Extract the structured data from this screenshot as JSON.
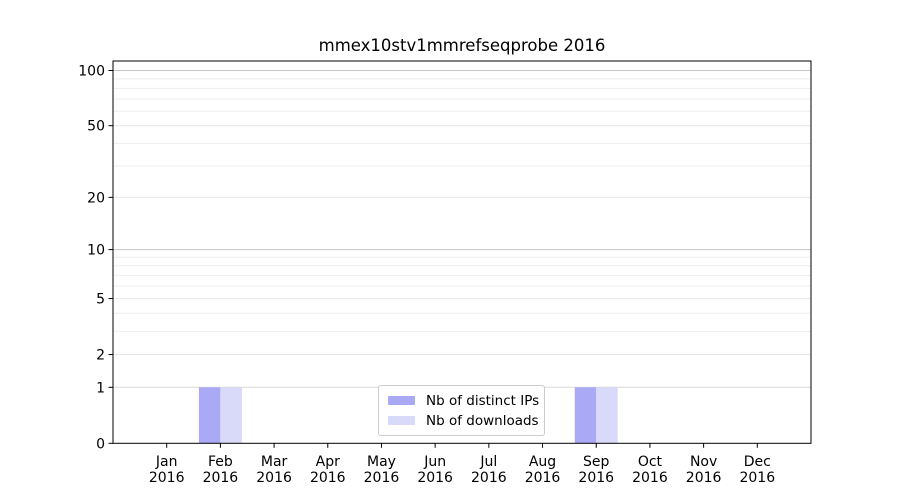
{
  "chart_data": {
    "type": "bar",
    "title": "mmex10stv1mmrefseqprobe 2016",
    "xlabel": "",
    "ylabel": "",
    "yscale": "log1p",
    "ylim": [
      0,
      113
    ],
    "yticks": [
      0,
      1,
      2,
      5,
      10,
      20,
      50,
      100
    ],
    "minor_gridlines": [
      3,
      4,
      6,
      7,
      8,
      9,
      30,
      40,
      60,
      70,
      80,
      90
    ],
    "grid": "horizontal",
    "legend_position": "lower center",
    "categories": [
      {
        "label": "Jan",
        "year": "2016"
      },
      {
        "label": "Feb",
        "year": "2016"
      },
      {
        "label": "Mar",
        "year": "2016"
      },
      {
        "label": "Apr",
        "year": "2016"
      },
      {
        "label": "May",
        "year": "2016"
      },
      {
        "label": "Jun",
        "year": "2016"
      },
      {
        "label": "Jul",
        "year": "2016"
      },
      {
        "label": "Aug",
        "year": "2016"
      },
      {
        "label": "Sep",
        "year": "2016"
      },
      {
        "label": "Oct",
        "year": "2016"
      },
      {
        "label": "Nov",
        "year": "2016"
      },
      {
        "label": "Dec",
        "year": "2016"
      }
    ],
    "series": [
      {
        "name": "Nb of distinct IPs",
        "color": "#a9a9f5",
        "values": [
          0,
          1,
          0,
          0,
          0,
          0,
          0,
          0,
          1,
          0,
          0,
          0
        ]
      },
      {
        "name": "Nb of downloads",
        "color": "#d9d9f9",
        "values": [
          0,
          1,
          0,
          0,
          0,
          0,
          0,
          0,
          1,
          0,
          0,
          0
        ]
      }
    ]
  }
}
